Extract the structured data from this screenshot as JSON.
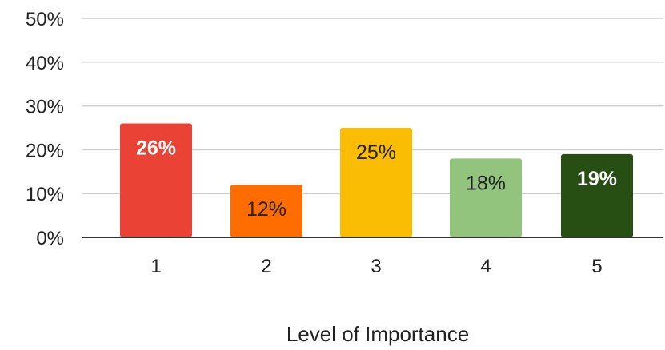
{
  "chart_data": {
    "type": "bar",
    "title": "",
    "xlabel": "Level of Importance",
    "ylabel": "",
    "categories": [
      "1",
      "2",
      "3",
      "4",
      "5"
    ],
    "values": [
      26,
      12,
      25,
      18,
      19
    ],
    "data_labels": [
      "26%",
      "12%",
      "25%",
      "18%",
      "19%"
    ],
    "ylim": [
      0,
      50
    ],
    "yticks": [
      0,
      10,
      20,
      30,
      40,
      50
    ],
    "ytick_labels": [
      "0%",
      "10%",
      "20%",
      "30%",
      "40%",
      "50%"
    ],
    "grid": true,
    "legend": "none",
    "bar_colors": [
      "#ea4335",
      "#ff6d01",
      "#fbbc04",
      "#93c47d",
      "#274e13"
    ],
    "data_label_colors": [
      "#ffffff",
      "#222222",
      "#222222",
      "#222222",
      "#ffffff"
    ],
    "gridline_color": "#cccccc",
    "axis_color": "#333333"
  }
}
